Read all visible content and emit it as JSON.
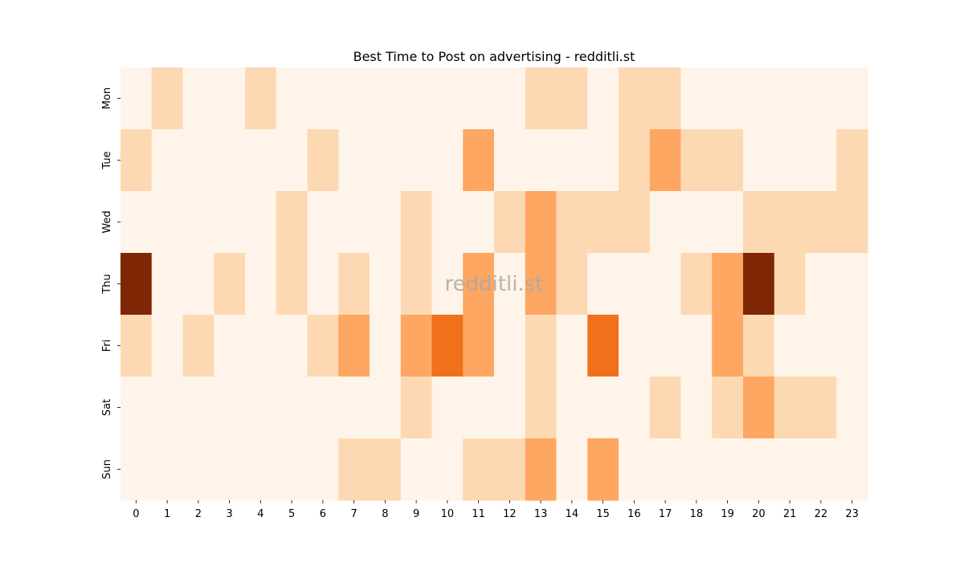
{
  "chart_data": {
    "type": "heatmap",
    "title": "Best Time to Post on advertising - redditli.st",
    "xlabel": "",
    "ylabel": "",
    "x_categories": [
      "0",
      "1",
      "2",
      "3",
      "4",
      "5",
      "6",
      "7",
      "8",
      "9",
      "10",
      "11",
      "12",
      "13",
      "14",
      "15",
      "16",
      "17",
      "18",
      "19",
      "20",
      "21",
      "22",
      "23"
    ],
    "y_categories": [
      "Mon",
      "Tue",
      "Wed",
      "Thu",
      "Fri",
      "Sat",
      "Sun"
    ],
    "values": [
      [
        0,
        1,
        0,
        0,
        1,
        0,
        0,
        0,
        0,
        0,
        0,
        0,
        0,
        1,
        1,
        0,
        1,
        1,
        0,
        0,
        0,
        0,
        0,
        0
      ],
      [
        1,
        0,
        0,
        0,
        0,
        0,
        1,
        0,
        0,
        0,
        0,
        2,
        0,
        0,
        0,
        0,
        1,
        2,
        1,
        1,
        0,
        0,
        0,
        1
      ],
      [
        0,
        0,
        0,
        0,
        0,
        1,
        0,
        0,
        0,
        1,
        0,
        0,
        1,
        2,
        1,
        1,
        1,
        0,
        0,
        0,
        1,
        1,
        1,
        1
      ],
      [
        5,
        0,
        0,
        1,
        0,
        1,
        0,
        1,
        0,
        1,
        0,
        2,
        0,
        2,
        1,
        0,
        0,
        0,
        1,
        2,
        5,
        1,
        0,
        0
      ],
      [
        1,
        0,
        1,
        0,
        0,
        0,
        1,
        2,
        0,
        2,
        3,
        2,
        0,
        1,
        0,
        3,
        0,
        0,
        0,
        2,
        1,
        0,
        0,
        0
      ],
      [
        0,
        0,
        0,
        0,
        0,
        0,
        0,
        0,
        0,
        1,
        0,
        0,
        0,
        1,
        0,
        0,
        0,
        1,
        0,
        1,
        2,
        1,
        1,
        0
      ],
      [
        0,
        0,
        0,
        0,
        0,
        0,
        0,
        1,
        1,
        0,
        0,
        1,
        1,
        2,
        0,
        2,
        0,
        0,
        0,
        0,
        0,
        0,
        0,
        0
      ]
    ],
    "color_scale": {
      "0": "#fff4e9",
      "1": "#fdd9b3",
      "2": "#fda762",
      "3": "#f0701c",
      "5": "#7f2705"
    },
    "colorbar": false,
    "grid": false,
    "watermark": "redditli.st"
  }
}
